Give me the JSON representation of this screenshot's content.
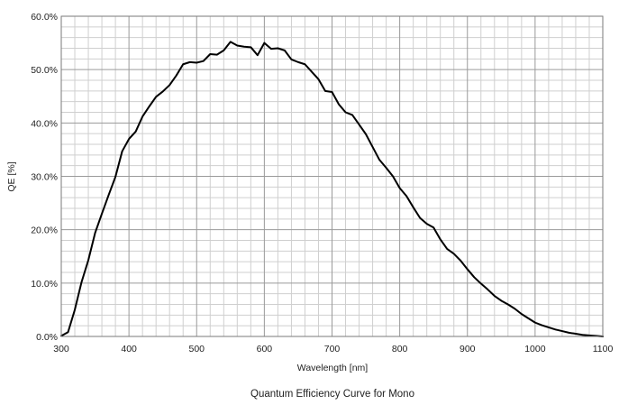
{
  "chart_data": {
    "type": "line",
    "title": "Quantum Efficiency Curve for Mono",
    "xlabel": "Wavelength [nm]",
    "ylabel": "QE [%]",
    "xlim": [
      300,
      1100
    ],
    "ylim": [
      0,
      60
    ],
    "grid": true,
    "x_ticks": [
      300,
      400,
      500,
      600,
      700,
      800,
      900,
      1000,
      1100
    ],
    "x_tick_labels": [
      "300",
      "400",
      "500",
      "600",
      "700",
      "800",
      "900",
      "1000",
      "1100"
    ],
    "y_ticks": [
      0,
      10,
      20,
      30,
      40,
      50,
      60
    ],
    "y_tick_labels": [
      "0.0%",
      "10.0%",
      "20.0%",
      "30.0%",
      "40.0%",
      "50.0%",
      "60.0%"
    ],
    "series": [
      {
        "color": "#000000",
        "x": [
          300,
          310,
          320,
          330,
          340,
          350,
          360,
          370,
          380,
          390,
          400,
          410,
          420,
          430,
          440,
          450,
          460,
          470,
          480,
          490,
          500,
          510,
          520,
          530,
          540,
          550,
          560,
          570,
          580,
          590,
          600,
          610,
          620,
          630,
          640,
          650,
          660,
          670,
          680,
          690,
          700,
          710,
          720,
          730,
          740,
          750,
          760,
          770,
          780,
          790,
          800,
          810,
          820,
          830,
          840,
          850,
          860,
          870,
          880,
          890,
          900,
          910,
          920,
          930,
          940,
          950,
          960,
          970,
          980,
          990,
          1000,
          1010,
          1020,
          1030,
          1040,
          1050,
          1060,
          1070,
          1080,
          1090,
          1100
        ],
        "y": [
          0.1,
          0.8,
          5.0,
          10.2,
          14.3,
          19.4,
          23.0,
          26.5,
          29.9,
          34.7,
          37.0,
          38.4,
          41.2,
          43.1,
          44.9,
          45.9,
          47.1,
          48.9,
          51.0,
          51.4,
          51.3,
          51.6,
          52.9,
          52.8,
          53.6,
          55.2,
          54.5,
          54.3,
          54.2,
          52.7,
          55.0,
          53.9,
          54.0,
          53.6,
          51.9,
          51.4,
          51.0,
          49.6,
          48.2,
          46.0,
          45.8,
          43.5,
          42.0,
          41.5,
          39.7,
          37.9,
          35.5,
          33.1,
          31.6,
          30.0,
          27.8,
          26.3,
          24.2,
          22.2,
          21.1,
          20.4,
          18.2,
          16.4,
          15.5,
          14.2,
          12.6,
          11.1,
          9.9,
          8.8,
          7.6,
          6.7,
          6.0,
          5.2,
          4.2,
          3.4,
          2.6,
          2.1,
          1.7,
          1.3,
          1.0,
          0.7,
          0.5,
          0.3,
          0.2,
          0.1,
          0.0
        ]
      }
    ]
  }
}
